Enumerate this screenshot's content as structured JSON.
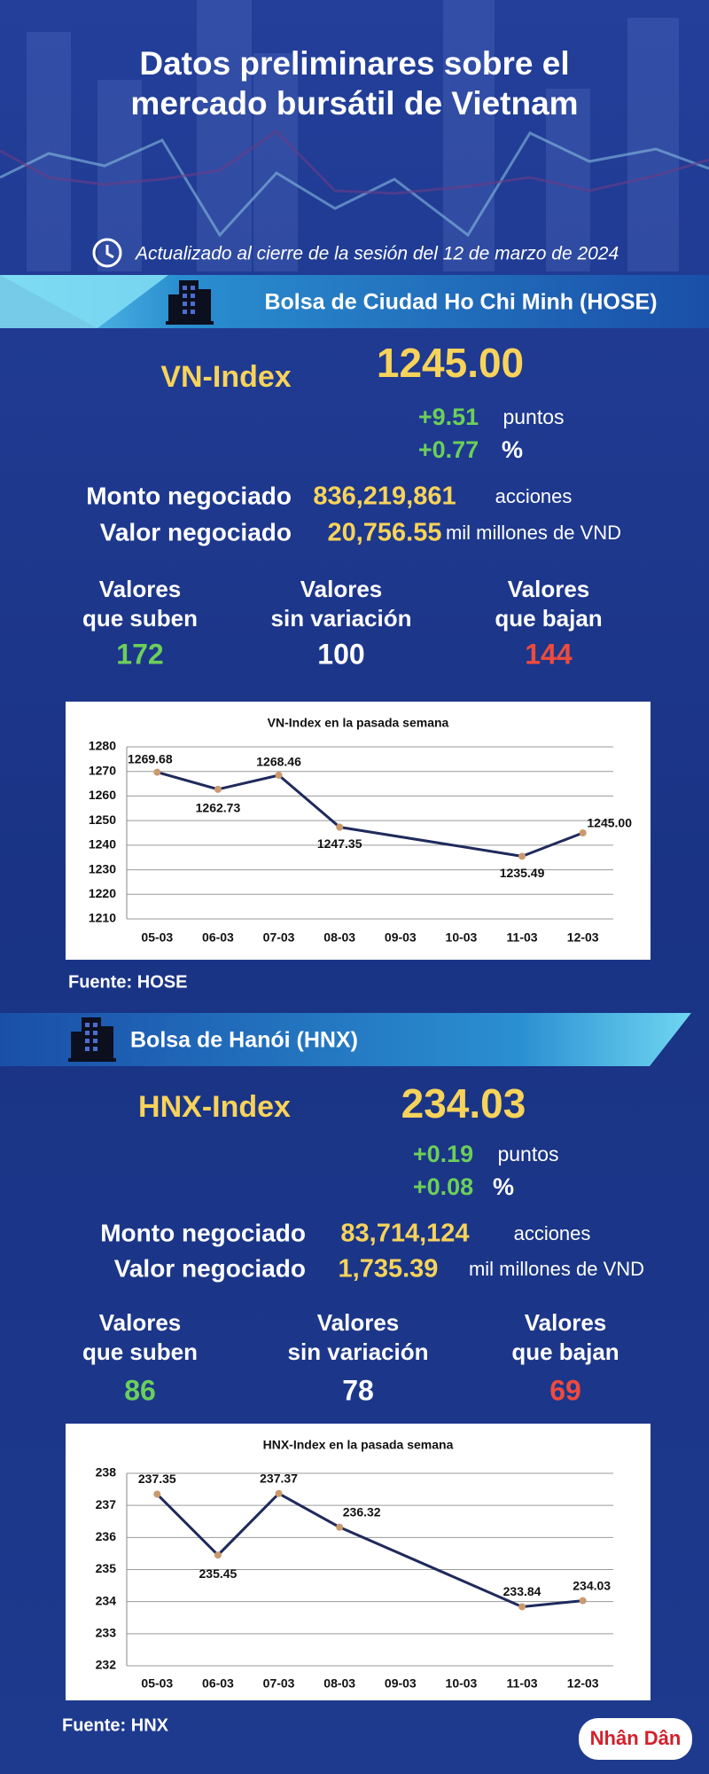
{
  "header": {
    "title_line1": "Datos preliminares sobre el",
    "title_line2": "mercado bursátil de Vietnam",
    "updated": "Actualizado al cierre de la sesión del 12 de marzo de 2024"
  },
  "sections": [
    {
      "exchange": "Bolsa de Ciudad Ho Chi Minh (HOSE)",
      "index_name": "VN-Index",
      "index_value": "1245.00",
      "change_points": "+9.51",
      "points_unit": "puntos",
      "change_pct": "+0.77",
      "pct_unit": "%",
      "volume_label": "Monto negociado",
      "volume": "836,219,861",
      "volume_unit": "acciones",
      "value_label": "Valor negociado",
      "value": "20,756.55",
      "value_unit": "mil millones de VND",
      "advancers_label": [
        "Valores",
        "que suben"
      ],
      "advancers": 172,
      "unchanged_label": [
        "Valores",
        "sin variación"
      ],
      "unchanged": 100,
      "decliners_label": [
        "Valores",
        "que bajan"
      ],
      "decliners": 144,
      "source": "Fuente: HOSE"
    },
    {
      "exchange": "Bolsa de Hanói (HNX)",
      "index_name": "HNX-Index",
      "index_value": "234.03",
      "change_points": "+0.19",
      "points_unit": "puntos",
      "change_pct": "+0.08",
      "pct_unit": "%",
      "volume_label": "Monto negociado",
      "volume": "83,714,124",
      "volume_unit": "acciones",
      "value_label": "Valor negociado",
      "value": "1,735.39",
      "value_unit": "mil millones de VND",
      "advancers_label": [
        "Valores",
        "que suben"
      ],
      "advancers": 86,
      "unchanged_label": [
        "Valores",
        "sin variación"
      ],
      "unchanged": 78,
      "decliners_label": [
        "Valores",
        "que bajan"
      ],
      "decliners": 69,
      "source": "Fuente: HNX"
    }
  ],
  "chart_data": [
    {
      "type": "line",
      "title": "VN-Index en la pasada semana",
      "categories": [
        "05-03",
        "06-03",
        "07-03",
        "08-03",
        "09-03",
        "10-03",
        "11-03",
        "12-03"
      ],
      "series": [
        {
          "color": "#1f2a5c",
          "values": [
            1269.68,
            1262.73,
            1268.46,
            1247.35,
            null,
            null,
            1235.49,
            1245.0
          ],
          "value_labels": [
            "1269.68",
            "1262.73",
            "1268.46",
            "1247.35",
            null,
            null,
            "1235.49",
            "1245.00"
          ]
        }
      ],
      "ylim": [
        1210,
        1280
      ],
      "yticks": [
        1210,
        1220,
        1230,
        1240,
        1250,
        1260,
        1270,
        1280
      ],
      "grid": true
    },
    {
      "type": "line",
      "title": "HNX-Index en la pasada semana",
      "categories": [
        "05-03",
        "06-03",
        "07-03",
        "08-03",
        "09-03",
        "10-03",
        "11-03",
        "12-03"
      ],
      "series": [
        {
          "color": "#1f2a5c",
          "values": [
            237.35,
            235.45,
            237.37,
            236.32,
            null,
            null,
            233.84,
            234.03
          ]
        }
      ],
      "ylim": [
        232,
        238
      ],
      "yticks": [
        232,
        233,
        234,
        235,
        236,
        237,
        238
      ],
      "grid": true
    }
  ],
  "logo": "Nhân Dân"
}
